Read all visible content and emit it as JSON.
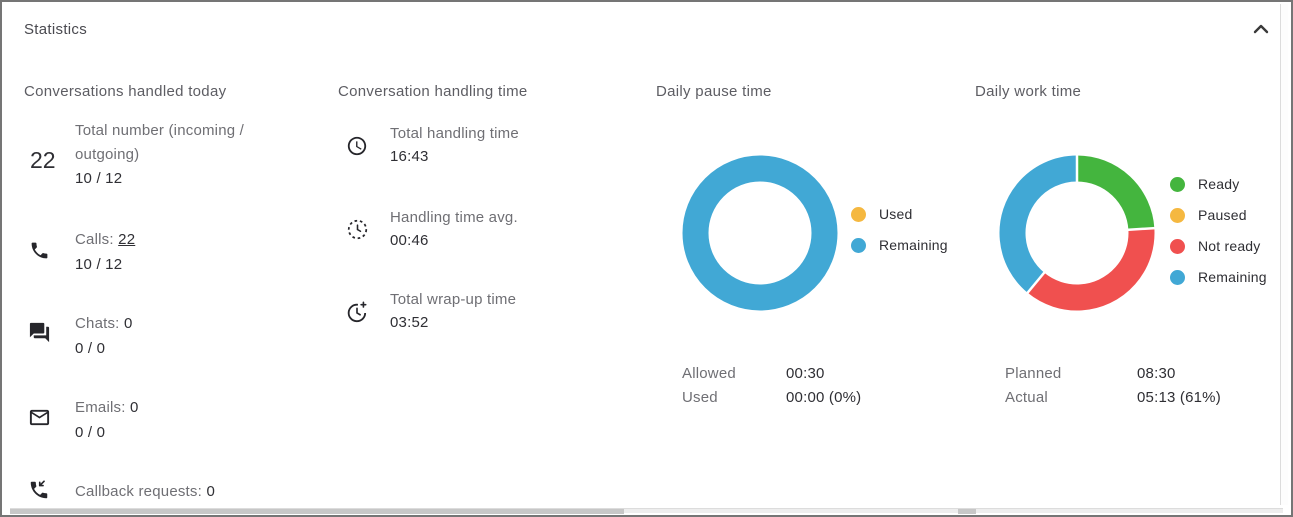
{
  "panel": {
    "title": "Statistics",
    "collapse_icon": "chevron-up"
  },
  "conversations": {
    "header": "Conversations handled today",
    "total": {
      "value": "22",
      "label_line1": "Total number (incoming /",
      "label_line2": "outgoing)",
      "detail": "10 / 12"
    },
    "items": [
      {
        "icon": "phone-icon",
        "label": "Calls:",
        "value": "22",
        "detail": "10 / 12"
      },
      {
        "icon": "chat-icon",
        "label": "Chats:",
        "value": "0",
        "detail": "0 / 0"
      },
      {
        "icon": "email-icon",
        "label": "Emails:",
        "value": "0",
        "detail": "0 / 0"
      },
      {
        "icon": "callback-phone-icon",
        "label": "Callback requests:",
        "value": "0",
        "detail": ""
      }
    ]
  },
  "handling_time": {
    "header": "Conversation handling time",
    "items": [
      {
        "icon": "clock-icon",
        "label": "Total handling time",
        "value": "16:43"
      },
      {
        "icon": "clock-dashed-icon",
        "label": "Handling time avg.",
        "value": "00:46"
      },
      {
        "icon": "clock-plus-icon",
        "label": "Total wrap-up time",
        "value": "03:52"
      }
    ]
  },
  "daily_pause": {
    "header": "Daily pause time",
    "legend": [
      {
        "label": "Used",
        "color": "#F5B840"
      },
      {
        "label": "Remaining",
        "color": "#41A8D5"
      }
    ],
    "stats": [
      {
        "label": "Allowed",
        "value": "00:30"
      },
      {
        "label": "Used",
        "value": "00:00 (0%)"
      }
    ]
  },
  "daily_work": {
    "header": "Daily work time",
    "legend": [
      {
        "label": "Ready",
        "color": "#44B53E"
      },
      {
        "label": "Paused",
        "color": "#F5B840"
      },
      {
        "label": "Not ready",
        "color": "#F0504F"
      },
      {
        "label": "Remaining",
        "color": "#41A8D5"
      }
    ],
    "stats": [
      {
        "label": "Planned",
        "value": "08:30"
      },
      {
        "label": "Actual",
        "value": "05:13 (61%)"
      }
    ]
  },
  "chart_data": [
    {
      "type": "pie",
      "title": "Daily pause time",
      "donut": true,
      "labels": [
        "Used",
        "Remaining"
      ],
      "values": [
        0,
        100
      ],
      "unit": "%",
      "colors": [
        "#F5B840",
        "#41A8D5"
      ],
      "legend_position": "right",
      "annotations": {
        "Allowed": "00:30",
        "Used": "00:00 (0%)"
      }
    },
    {
      "type": "pie",
      "title": "Daily work time",
      "donut": true,
      "labels": [
        "Ready",
        "Paused",
        "Not ready",
        "Remaining"
      ],
      "values": [
        24,
        0,
        37,
        39
      ],
      "unit": "%",
      "colors": [
        "#44B53E",
        "#F5B840",
        "#F0504F",
        "#41A8D5"
      ],
      "legend_position": "right",
      "annotations": {
        "Planned": "08:30",
        "Actual": "05:13 (61%)"
      }
    }
  ]
}
